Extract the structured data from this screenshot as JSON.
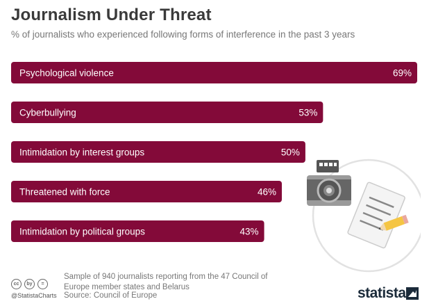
{
  "title": "Journalism Under Threat",
  "subtitle": "% of journalists who experienced following forms of interference in the past 3 years",
  "chart_data": {
    "type": "bar",
    "orientation": "horizontal",
    "categories": [
      "Psychological violence",
      "Cyberbullying",
      "Intimidation by interest groups",
      "Threatened with force",
      "Intimidation by political groups"
    ],
    "values": [
      69,
      53,
      50,
      46,
      43
    ],
    "value_labels": [
      "69%",
      "53%",
      "50%",
      "46%",
      "43%"
    ],
    "bar_color": "#830a39",
    "title": "Journalism Under Threat",
    "xlabel": "",
    "ylabel": ""
  },
  "footer": {
    "note": "Sample of 940 journalists reporting from the 47 Council of Europe member states and Belarus",
    "source": "Source: Council of Europe",
    "handle": "@StatistaCharts",
    "brand": "statista",
    "license_icons": [
      "cc",
      "by",
      "="
    ]
  },
  "illustration": [
    "camera-icon",
    "notepad-icon",
    "pencil-icon"
  ]
}
